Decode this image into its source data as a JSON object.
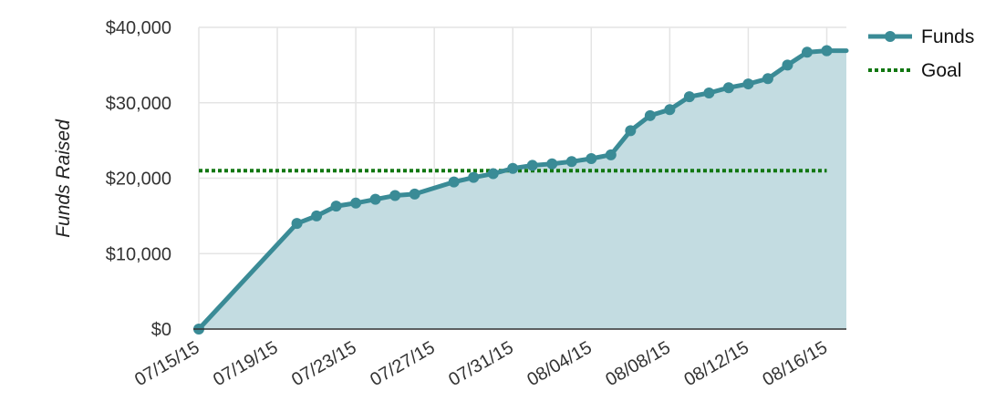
{
  "chart_data": {
    "type": "area",
    "ylabel": "Funds Raised",
    "ylim": [
      0,
      40000
    ],
    "y_ticks": [
      0,
      10000,
      20000,
      30000,
      40000
    ],
    "y_tick_labels": [
      "$0",
      "$10,000",
      "$20,000",
      "$30,000",
      "$40,000"
    ],
    "x_tick_dates": [
      "2015-07-15",
      "2015-07-19",
      "2015-07-23",
      "2015-07-27",
      "2015-07-31",
      "2015-08-04",
      "2015-08-08",
      "2015-08-12",
      "2015-08-16"
    ],
    "x_tick_labels": [
      "07/15/15",
      "07/19/15",
      "07/23/15",
      "07/27/15",
      "07/31/15",
      "08/04/15",
      "08/08/15",
      "08/12/15",
      "08/16/15"
    ],
    "xlim": [
      "2015-07-15",
      "2015-08-17"
    ],
    "grid": true,
    "legend_position": "top-right",
    "colors": {
      "funds_line": "#3a8b96",
      "funds_fill": "#c3dce1",
      "goal_line": "#117711",
      "grid": "#e4e4e4",
      "axis": "#333333"
    },
    "series": [
      {
        "name": "Funds",
        "style": "line-with-markers-and-area",
        "points": [
          {
            "date": "2015-07-15",
            "value": 0
          },
          {
            "date": "2015-07-20",
            "value": 14000
          },
          {
            "date": "2015-07-21",
            "value": 15000
          },
          {
            "date": "2015-07-22",
            "value": 16300
          },
          {
            "date": "2015-07-23",
            "value": 16700
          },
          {
            "date": "2015-07-24",
            "value": 17200
          },
          {
            "date": "2015-07-25",
            "value": 17700
          },
          {
            "date": "2015-07-26",
            "value": 17900
          },
          {
            "date": "2015-07-28",
            "value": 19500
          },
          {
            "date": "2015-07-29",
            "value": 20100
          },
          {
            "date": "2015-07-30",
            "value": 20600
          },
          {
            "date": "2015-07-31",
            "value": 21300
          },
          {
            "date": "2015-08-01",
            "value": 21700
          },
          {
            "date": "2015-08-02",
            "value": 21900
          },
          {
            "date": "2015-08-03",
            "value": 22200
          },
          {
            "date": "2015-08-04",
            "value": 22600
          },
          {
            "date": "2015-08-05",
            "value": 23100
          },
          {
            "date": "2015-08-06",
            "value": 26300
          },
          {
            "date": "2015-08-07",
            "value": 28300
          },
          {
            "date": "2015-08-08",
            "value": 29100
          },
          {
            "date": "2015-08-09",
            "value": 30800
          },
          {
            "date": "2015-08-10",
            "value": 31300
          },
          {
            "date": "2015-08-11",
            "value": 32000
          },
          {
            "date": "2015-08-12",
            "value": 32500
          },
          {
            "date": "2015-08-13",
            "value": 33200
          },
          {
            "date": "2015-08-14",
            "value": 35000
          },
          {
            "date": "2015-08-15",
            "value": 36700
          },
          {
            "date": "2015-08-16",
            "value": 36900
          },
          {
            "date": "2015-08-16",
            "value": 36900
          },
          {
            "date": "2015-08-17",
            "value": 36900
          }
        ]
      },
      {
        "name": "Goal",
        "style": "dotted-line",
        "value": 21000,
        "x_range": [
          "2015-07-15",
          "2015-08-16"
        ]
      }
    ]
  }
}
